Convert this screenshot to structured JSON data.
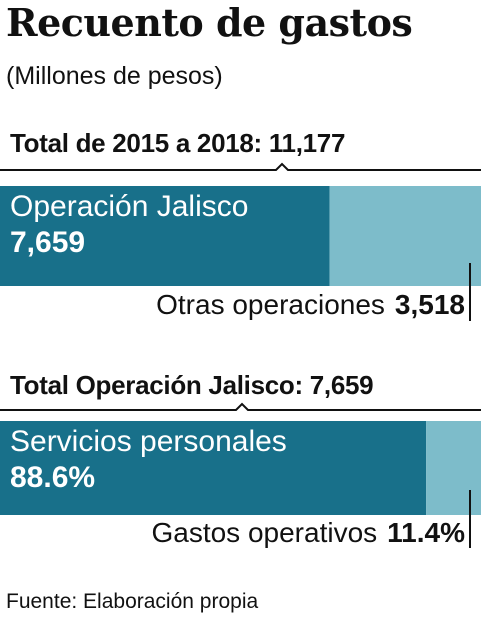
{
  "title": "Recuento de gastos",
  "subtitle": "(Millones de pesos)",
  "source": "Fuente: Elaboración propia",
  "colors": {
    "primary": "#18708a",
    "secondary": "#7dbcca",
    "text": "#111111"
  },
  "chart_data": [
    {
      "type": "bar",
      "title": "Total de 2015 a 2018: 11,177",
      "total": 11177,
      "series": [
        {
          "name": "Operación Jalisco",
          "value": 7659,
          "label": "7,659"
        },
        {
          "name": "Otras operaciones",
          "value": 3518,
          "label": "3,518"
        }
      ]
    },
    {
      "type": "bar",
      "title": "Total Operación Jalisco: 7,659",
      "total": 100,
      "series": [
        {
          "name": "Servicios personales",
          "value": 88.6,
          "label": "88.6%"
        },
        {
          "name": "Gastos operativos",
          "value": 11.4,
          "label": "11.4%"
        }
      ]
    }
  ]
}
